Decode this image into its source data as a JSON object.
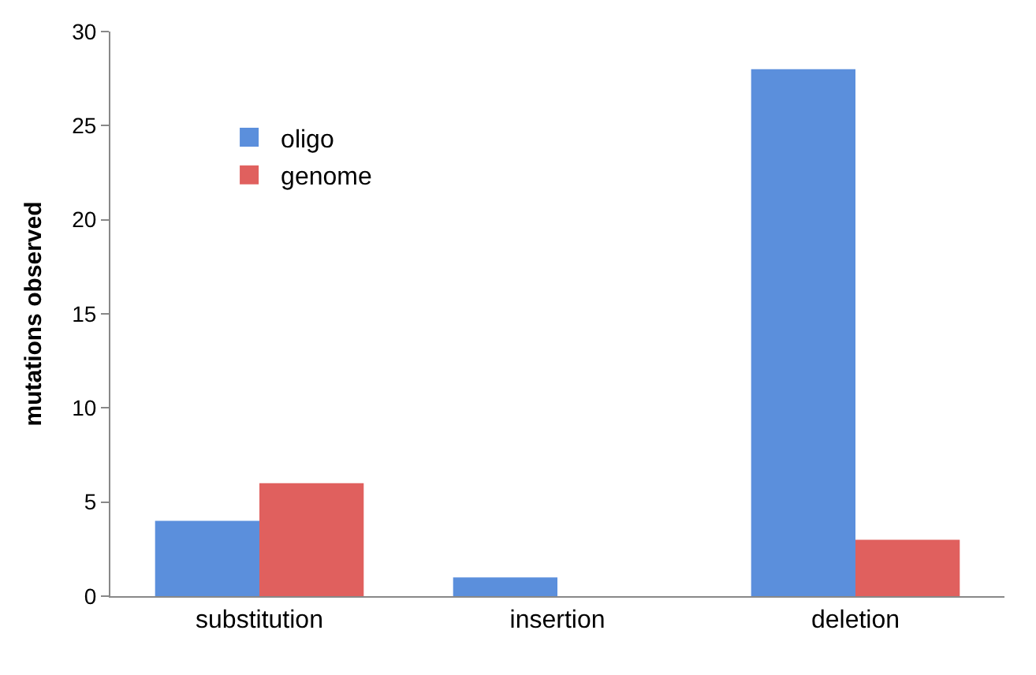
{
  "chart_data": {
    "type": "bar",
    "ylabel": "mutations observed",
    "categories": [
      "substitution",
      "insertion",
      "deletion"
    ],
    "series": [
      {
        "name": "oligo",
        "color": "#5b8fdc",
        "values": [
          4,
          1,
          28
        ]
      },
      {
        "name": "genome",
        "color": "#e0605e",
        "values": [
          6,
          0,
          3
        ]
      }
    ],
    "ylim": [
      0,
      30
    ],
    "yticks": [
      0,
      5,
      10,
      15,
      20,
      25,
      30
    ],
    "grid": false,
    "legend": "top left"
  }
}
